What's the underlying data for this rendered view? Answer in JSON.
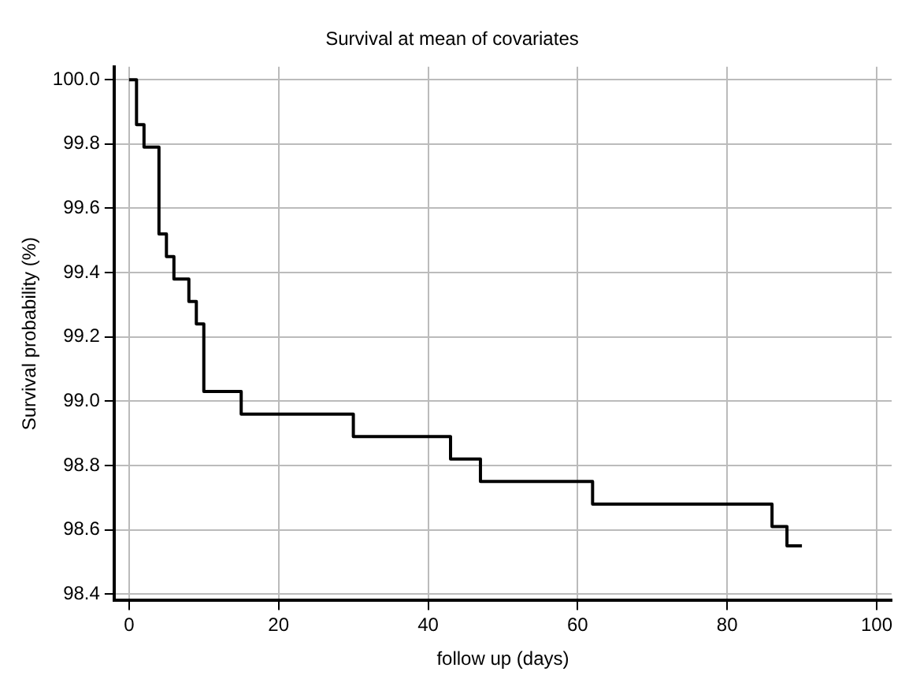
{
  "chart_data": {
    "type": "step",
    "title": "Survival at mean of covariates",
    "xlabel": "follow up (days)",
    "ylabel": "Survival probability (%)",
    "x": [
      0,
      1,
      2,
      4,
      5,
      6,
      8,
      9,
      10,
      15,
      30,
      43,
      47,
      62,
      86,
      88,
      90
    ],
    "series": [
      {
        "color": "#000000",
        "values": [
          100.0,
          99.86,
          99.79,
          99.52,
          99.45,
          99.38,
          99.31,
          99.24,
          99.03,
          98.96,
          98.89,
          98.82,
          98.75,
          98.68,
          98.61,
          98.55,
          98.55
        ]
      }
    ],
    "xlim": [
      -2,
      102
    ],
    "ylim": [
      98.38,
      100.04
    ],
    "xticks": [
      0,
      20,
      40,
      60,
      80,
      100
    ],
    "yticks": [
      98.4,
      98.6,
      98.8,
      {
        "value": 99,
        "label": "99.0"
      },
      99.2,
      99.4,
      99.6,
      99.8,
      {
        "value": 100,
        "label": "100.0"
      }
    ],
    "grid": true,
    "legend": false
  }
}
